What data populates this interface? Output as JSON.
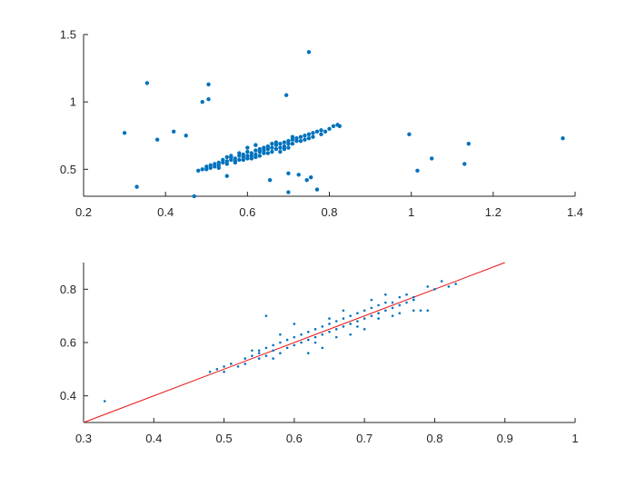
{
  "chart_data": [
    {
      "type": "scatter",
      "title": "",
      "xlabel": "",
      "ylabel": "",
      "xlim": [
        0.2,
        1.4
      ],
      "ylim": [
        0.3,
        1.5
      ],
      "xticks": [
        "0.2",
        "0.4",
        "0.6",
        "0.8",
        "1",
        "1.2",
        "1.4"
      ],
      "yticks": [
        "0.5",
        "1",
        "1.5"
      ],
      "marker_color": "#0072BD",
      "grid": false,
      "series": [
        {
          "points": [
            [
              0.3,
              0.77
            ],
            [
              0.33,
              0.37
            ],
            [
              0.355,
              1.14
            ],
            [
              0.38,
              0.72
            ],
            [
              0.42,
              0.78
            ],
            [
              0.45,
              0.75
            ],
            [
              0.47,
              0.3
            ],
            [
              0.49,
              1.0
            ],
            [
              0.505,
              1.02
            ],
            [
              0.505,
              1.13
            ],
            [
              0.55,
              0.45
            ],
            [
              0.655,
              0.42
            ],
            [
              0.695,
              1.05
            ],
            [
              0.7,
              0.47
            ],
            [
              0.7,
              0.33
            ],
            [
              0.725,
              0.46
            ],
            [
              0.745,
              0.42
            ],
            [
              0.75,
              1.37
            ],
            [
              0.755,
              0.44
            ],
            [
              0.77,
              0.35
            ],
            [
              0.995,
              0.76
            ],
            [
              1.015,
              0.49
            ],
            [
              1.05,
              0.58
            ],
            [
              1.13,
              0.54
            ],
            [
              1.14,
              0.69
            ],
            [
              1.37,
              0.73
            ],
            [
              0.48,
              0.49
            ],
            [
              0.49,
              0.5
            ],
            [
              0.5,
              0.5
            ],
            [
              0.5,
              0.52
            ],
            [
              0.51,
              0.51
            ],
            [
              0.52,
              0.52
            ],
            [
              0.52,
              0.54
            ],
            [
              0.53,
              0.53
            ],
            [
              0.53,
              0.55
            ],
            [
              0.54,
              0.55
            ],
            [
              0.54,
              0.57
            ],
            [
              0.55,
              0.56
            ],
            [
              0.55,
              0.54
            ],
            [
              0.56,
              0.57
            ],
            [
              0.56,
              0.59
            ],
            [
              0.57,
              0.58
            ],
            [
              0.57,
              0.56
            ],
            [
              0.58,
              0.6
            ],
            [
              0.58,
              0.57
            ],
            [
              0.59,
              0.59
            ],
            [
              0.59,
              0.61
            ],
            [
              0.6,
              0.6
            ],
            [
              0.6,
              0.58
            ],
            [
              0.61,
              0.62
            ],
            [
              0.61,
              0.6
            ],
            [
              0.62,
              0.61
            ],
            [
              0.62,
              0.64
            ],
            [
              0.63,
              0.63
            ],
            [
              0.63,
              0.6
            ],
            [
              0.64,
              0.64
            ],
            [
              0.64,
              0.62
            ],
            [
              0.65,
              0.65
            ],
            [
              0.65,
              0.67
            ],
            [
              0.66,
              0.66
            ],
            [
              0.66,
              0.63
            ],
            [
              0.67,
              0.68
            ],
            [
              0.67,
              0.65
            ],
            [
              0.68,
              0.69
            ],
            [
              0.68,
              0.66
            ],
            [
              0.69,
              0.7
            ],
            [
              0.69,
              0.67
            ],
            [
              0.7,
              0.71
            ],
            [
              0.7,
              0.69
            ],
            [
              0.71,
              0.72
            ],
            [
              0.71,
              0.69
            ],
            [
              0.72,
              0.73
            ],
            [
              0.72,
              0.71
            ],
            [
              0.73,
              0.74
            ],
            [
              0.73,
              0.71
            ],
            [
              0.74,
              0.75
            ],
            [
              0.75,
              0.76
            ],
            [
              0.75,
              0.73
            ],
            [
              0.76,
              0.77
            ],
            [
              0.77,
              0.78
            ],
            [
              0.78,
              0.79
            ],
            [
              0.79,
              0.78
            ],
            [
              0.8,
              0.8
            ],
            [
              0.81,
              0.82
            ],
            [
              0.82,
              0.83
            ],
            [
              0.825,
              0.82
            ],
            [
              0.56,
              0.6
            ],
            [
              0.58,
              0.62
            ],
            [
              0.6,
              0.63
            ],
            [
              0.62,
              0.59
            ],
            [
              0.64,
              0.66
            ],
            [
              0.66,
              0.69
            ],
            [
              0.68,
              0.63
            ],
            [
              0.57,
              0.55
            ],
            [
              0.59,
              0.57
            ],
            [
              0.61,
              0.58
            ],
            [
              0.63,
              0.65
            ],
            [
              0.65,
              0.62
            ],
            [
              0.67,
              0.7
            ],
            [
              0.69,
              0.65
            ],
            [
              0.71,
              0.74
            ],
            [
              0.74,
              0.72
            ],
            [
              0.62,
              0.68
            ],
            [
              0.6,
              0.66
            ],
            [
              0.55,
              0.59
            ],
            [
              0.53,
              0.51
            ],
            [
              0.51,
              0.53
            ],
            [
              0.7,
              0.66
            ],
            [
              0.76,
              0.74
            ],
            [
              0.78,
              0.76
            ]
          ]
        }
      ]
    },
    {
      "type": "scatter",
      "title": "",
      "xlabel": "",
      "ylabel": "",
      "xlim": [
        0.3,
        1.0
      ],
      "ylim": [
        0.3,
        0.9
      ],
      "xticks": [
        "0.3",
        "0.4",
        "0.5",
        "0.6",
        "0.7",
        "0.8",
        "0.9",
        "1"
      ],
      "yticks": [
        "0.4",
        "0.6",
        "0.8"
      ],
      "marker_color": "#0072BD",
      "line_color": "#e8110f",
      "grid": false,
      "series": [
        {
          "points": [
            [
              0.33,
              0.38
            ],
            [
              0.48,
              0.49
            ],
            [
              0.49,
              0.5
            ],
            [
              0.5,
              0.51
            ],
            [
              0.5,
              0.49
            ],
            [
              0.51,
              0.52
            ],
            [
              0.52,
              0.51
            ],
            [
              0.53,
              0.54
            ],
            [
              0.53,
              0.52
            ],
            [
              0.54,
              0.55
            ],
            [
              0.54,
              0.57
            ],
            [
              0.55,
              0.54
            ],
            [
              0.55,
              0.57
            ],
            [
              0.56,
              0.58
            ],
            [
              0.56,
              0.55
            ],
            [
              0.57,
              0.59
            ],
            [
              0.57,
              0.57
            ],
            [
              0.58,
              0.6
            ],
            [
              0.58,
              0.56
            ],
            [
              0.59,
              0.61
            ],
            [
              0.59,
              0.58
            ],
            [
              0.6,
              0.62
            ],
            [
              0.6,
              0.59
            ],
            [
              0.61,
              0.63
            ],
            [
              0.61,
              0.6
            ],
            [
              0.62,
              0.64
            ],
            [
              0.62,
              0.61
            ],
            [
              0.63,
              0.65
            ],
            [
              0.63,
              0.62
            ],
            [
              0.64,
              0.66
            ],
            [
              0.64,
              0.63
            ],
            [
              0.65,
              0.67
            ],
            [
              0.65,
              0.64
            ],
            [
              0.66,
              0.68
            ],
            [
              0.66,
              0.65
            ],
            [
              0.67,
              0.69
            ],
            [
              0.67,
              0.66
            ],
            [
              0.68,
              0.7
            ],
            [
              0.68,
              0.67
            ],
            [
              0.69,
              0.71
            ],
            [
              0.69,
              0.68
            ],
            [
              0.7,
              0.72
            ],
            [
              0.7,
              0.69
            ],
            [
              0.71,
              0.73
            ],
            [
              0.71,
              0.7
            ],
            [
              0.72,
              0.74
            ],
            [
              0.72,
              0.71
            ],
            [
              0.73,
              0.75
            ],
            [
              0.73,
              0.72
            ],
            [
              0.74,
              0.75
            ],
            [
              0.74,
              0.73
            ],
            [
              0.75,
              0.77
            ],
            [
              0.75,
              0.74
            ],
            [
              0.76,
              0.78
            ],
            [
              0.76,
              0.75
            ],
            [
              0.77,
              0.77
            ],
            [
              0.77,
              0.76
            ],
            [
              0.78,
              0.72
            ],
            [
              0.79,
              0.81
            ],
            [
              0.8,
              0.8
            ],
            [
              0.81,
              0.83
            ],
            [
              0.82,
              0.81
            ],
            [
              0.83,
              0.82
            ],
            [
              0.56,
              0.7
            ],
            [
              0.6,
              0.67
            ],
            [
              0.62,
              0.56
            ],
            [
              0.64,
              0.58
            ],
            [
              0.66,
              0.62
            ],
            [
              0.68,
              0.63
            ],
            [
              0.7,
              0.65
            ],
            [
              0.71,
              0.76
            ],
            [
              0.74,
              0.7
            ],
            [
              0.75,
              0.71
            ],
            [
              0.77,
              0.72
            ],
            [
              0.79,
              0.72
            ],
            [
              0.58,
              0.63
            ],
            [
              0.57,
              0.54
            ],
            [
              0.55,
              0.56
            ],
            [
              0.63,
              0.6
            ],
            [
              0.65,
              0.69
            ],
            [
              0.67,
              0.72
            ],
            [
              0.69,
              0.66
            ],
            [
              0.72,
              0.69
            ],
            [
              0.73,
              0.78
            ]
          ],
          "fit_line": [
            [
              0.3,
              0.3
            ],
            [
              0.9,
              0.9
            ]
          ]
        }
      ]
    }
  ]
}
